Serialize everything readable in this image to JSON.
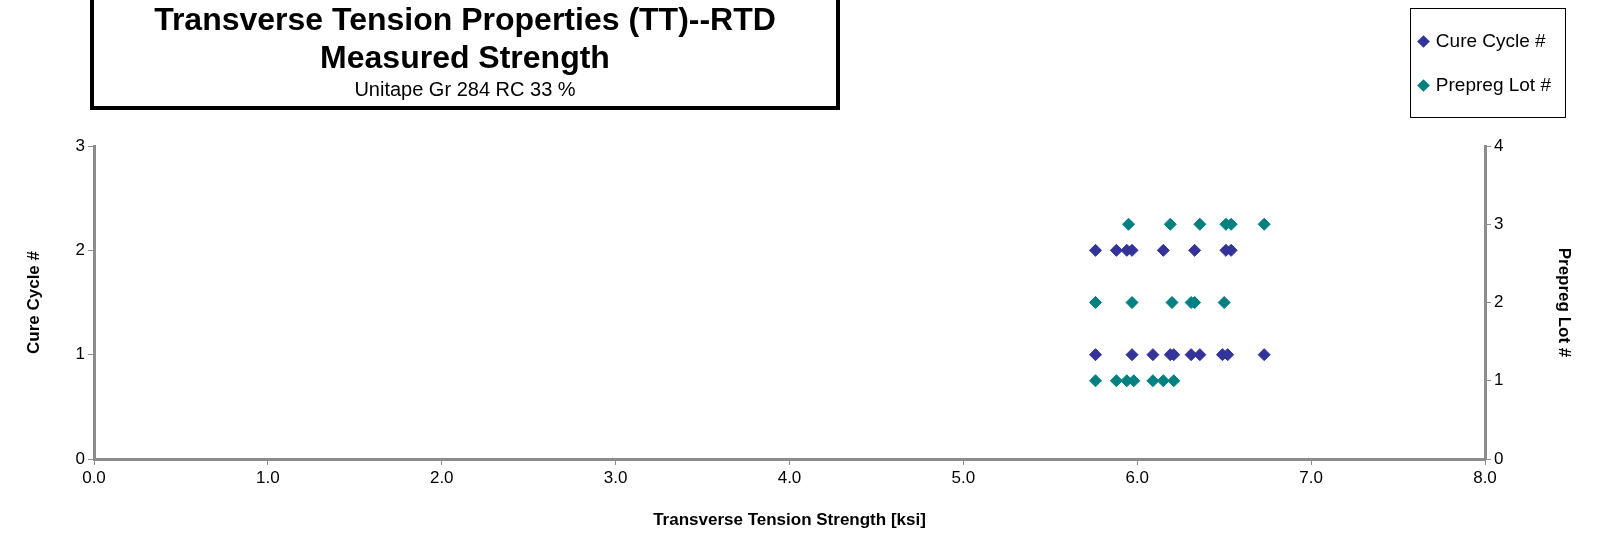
{
  "chart_data": {
    "type": "scatter",
    "title": "Transverse Tension Properties (TT)--RTD\nMeasured Strength",
    "subtitle": "Unitape Gr 284 RC 33 %",
    "xlabel": "Transverse Tension Strength [ksi]",
    "ylabel": "Cure Cycle #",
    "y2label": "Prepreg Lot #",
    "xlim": [
      0,
      8
    ],
    "xticks": [
      {
        "value": 0,
        "label": "0.0"
      },
      {
        "value": 1,
        "label": "1.0"
      },
      {
        "value": 2,
        "label": "2.0"
      },
      {
        "value": 3,
        "label": "3.0"
      },
      {
        "value": 4,
        "label": "4.0"
      },
      {
        "value": 5,
        "label": "5.0"
      },
      {
        "value": 6,
        "label": "6.0"
      },
      {
        "value": 7,
        "label": "7.0"
      },
      {
        "value": 8,
        "label": "8.0"
      }
    ],
    "ylim": [
      0,
      3
    ],
    "yticks": [
      0,
      1,
      2,
      3
    ],
    "y2lim": [
      0,
      4
    ],
    "y2ticks": [
      0,
      1,
      2,
      3,
      4
    ],
    "marker": "diamond",
    "grid": false,
    "legend": "top right",
    "series": [
      {
        "name": "Cure Cycle #",
        "color": "#333399",
        "x": [
          5.76,
          5.88,
          5.94,
          5.97,
          6.15,
          6.33,
          6.51,
          6.54,
          5.76,
          5.97,
          6.09,
          6.19,
          6.21,
          6.31,
          6.36,
          6.49,
          6.52,
          6.73
        ],
        "values": [
          2,
          2,
          2,
          2,
          2,
          2,
          2,
          2,
          1,
          1,
          1,
          1,
          1,
          1,
          1,
          1,
          1,
          1
        ]
      },
      {
        "name": "Prepreg Lot #",
        "color": "#008080",
        "axis": "y2",
        "x": [
          5.95,
          6.19,
          6.36,
          6.51,
          6.54,
          6.73,
          5.76,
          5.97,
          6.2,
          6.31,
          6.33,
          6.5,
          5.76,
          5.88,
          5.94,
          5.98,
          6.09,
          6.15,
          6.21
        ],
        "values": [
          3,
          3,
          3,
          3,
          3,
          3,
          2,
          2,
          2,
          2,
          2,
          2,
          1,
          1,
          1,
          1,
          1,
          1,
          1
        ]
      }
    ]
  }
}
